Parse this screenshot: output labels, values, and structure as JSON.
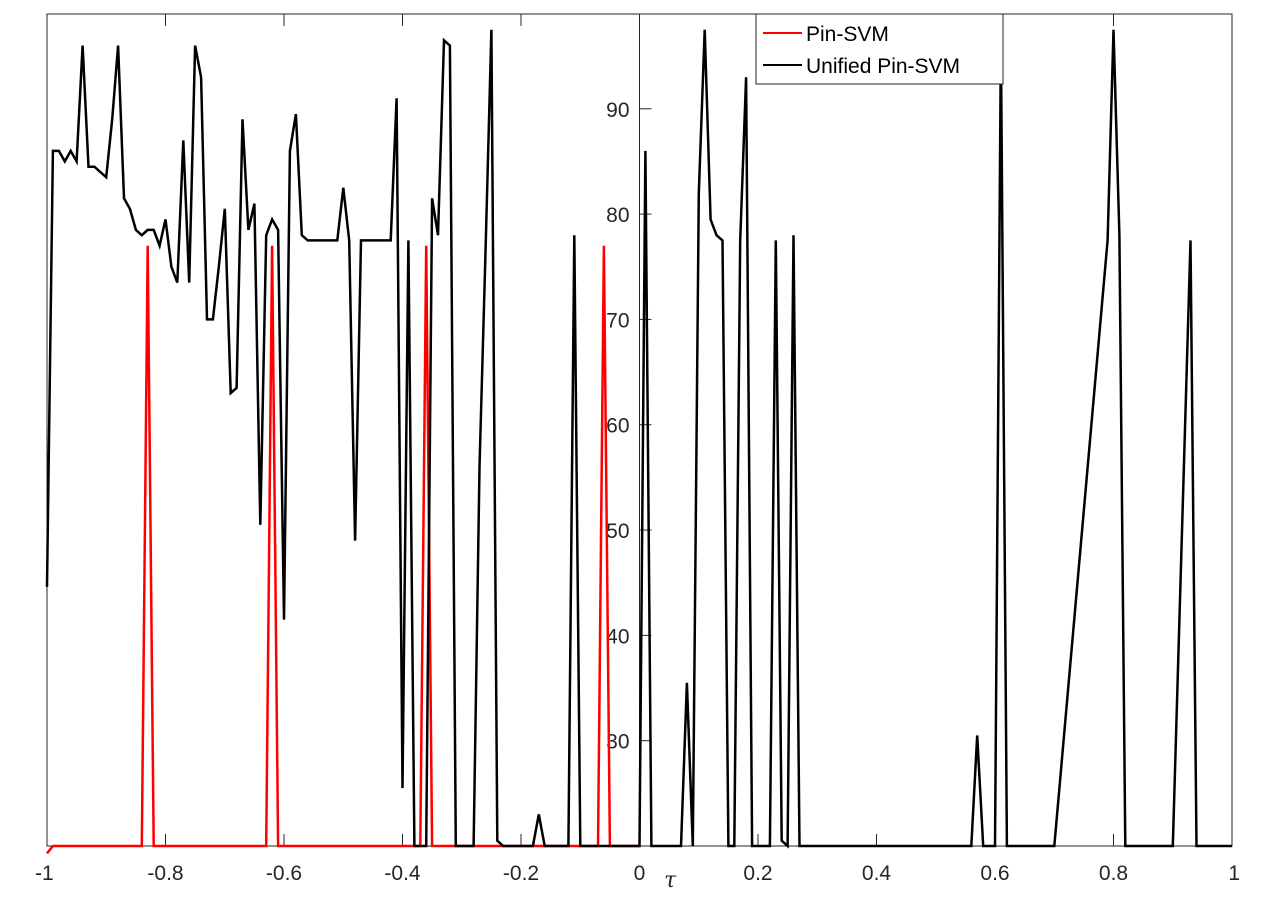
{
  "chart_data": {
    "type": "line",
    "xlabel": "τ",
    "ylabel": "",
    "xlim": [
      -1,
      1
    ],
    "ylim": [
      20,
      99
    ],
    "x_ticks": [
      -1,
      -0.8,
      -0.6,
      -0.4,
      -0.2,
      0,
      0.2,
      0.4,
      0.6,
      0.8,
      1
    ],
    "x_tick_labels": [
      "-1",
      "-0.8",
      "-0.6",
      "-0.4",
      "-0.2",
      "0",
      "0.2",
      "0.4",
      "0.6",
      "0.8",
      "1"
    ],
    "y_ticks": [
      30,
      40,
      50,
      60,
      70,
      80,
      90
    ],
    "y_tick_labels": [
      "30",
      "40",
      "50",
      "60",
      "70",
      "80",
      "90"
    ],
    "y_axis_location": "origin",
    "grid": false,
    "legend": {
      "location": "top-center",
      "entries": [
        "Pin-SVM",
        "Unified Pin-SVM"
      ]
    },
    "series": [
      {
        "name": "Pin-SVM",
        "color": "#ff0000",
        "x": [
          -1,
          -0.99,
          -0.84,
          -0.83,
          -0.82,
          -0.63,
          -0.62,
          -0.61,
          -0.37,
          -0.36,
          -0.35,
          -0.07,
          -0.06,
          -0.05,
          0
        ],
        "y": [
          19.3,
          20,
          20,
          77,
          20,
          20,
          77,
          20,
          20,
          77,
          20,
          20,
          77,
          20,
          20
        ]
      },
      {
        "name": "Unified Pin-SVM",
        "color": "#000000",
        "x": [
          -1,
          -0.99,
          -0.98,
          -0.97,
          -0.96,
          -0.95,
          -0.94,
          -0.93,
          -0.92,
          -0.91,
          -0.9,
          -0.89,
          -0.88,
          -0.87,
          -0.86,
          -0.85,
          -0.84,
          -0.83,
          -0.82,
          -0.81,
          -0.8,
          -0.79,
          -0.78,
          -0.77,
          -0.76,
          -0.75,
          -0.74,
          -0.73,
          -0.72,
          -0.71,
          -0.7,
          -0.69,
          -0.68,
          -0.67,
          -0.66,
          -0.65,
          -0.64,
          -0.63,
          -0.62,
          -0.61,
          -0.6,
          -0.59,
          -0.58,
          -0.57,
          -0.56,
          -0.55,
          -0.54,
          -0.53,
          -0.52,
          -0.51,
          -0.5,
          -0.49,
          -0.48,
          -0.47,
          -0.46,
          -0.45,
          -0.44,
          -0.43,
          -0.42,
          -0.41,
          -0.4,
          -0.39,
          -0.38,
          -0.37,
          -0.36,
          -0.35,
          -0.34,
          -0.33,
          -0.32,
          -0.31,
          -0.3,
          -0.29,
          -0.28,
          -0.27,
          -0.26,
          -0.25,
          -0.24,
          -0.23,
          -0.22,
          -0.21,
          -0.2,
          -0.19,
          -0.18,
          -0.17,
          -0.16,
          -0.15,
          -0.14,
          -0.13,
          -0.12,
          -0.11,
          -0.1,
          -0.09,
          -0.08,
          -0.07,
          -0.06,
          -0.05,
          -0.04,
          -0.03,
          -0.02,
          -0.01,
          0,
          0.01,
          0.02,
          0.03,
          0.04,
          0.05,
          0.06,
          0.07,
          0.08,
          0.09,
          0.1,
          0.11,
          0.12,
          0.13,
          0.14,
          0.15,
          0.16,
          0.17,
          0.18,
          0.19,
          0.2,
          0.21,
          0.22,
          0.23,
          0.24,
          0.25,
          0.26,
          0.27,
          0.28,
          0.3,
          0.4,
          0.5,
          0.56,
          0.57,
          0.58,
          0.59,
          0.6,
          0.61,
          0.62,
          0.63,
          0.64,
          0.7,
          0.79,
          0.8,
          0.81,
          0.82,
          0.83,
          0.9,
          0.93,
          0.94,
          0.95,
          0.96,
          1
        ],
        "y": [
          44.6,
          86,
          86,
          85,
          86,
          85,
          96,
          84.5,
          84.5,
          84,
          83.5,
          89,
          96,
          81.5,
          80.5,
          78.5,
          78,
          78.5,
          78.5,
          77,
          79.5,
          75,
          73.5,
          87,
          73.5,
          96,
          93,
          70,
          70,
          75,
          80.5,
          63,
          63.5,
          89,
          78.5,
          81,
          50.5,
          78,
          79.5,
          78.5,
          41.5,
          86,
          89.5,
          78,
          77.5,
          77.5,
          77.5,
          77.5,
          77.5,
          77.5,
          82.5,
          77.5,
          49,
          77.5,
          77.5,
          77.5,
          77.5,
          77.5,
          77.5,
          91,
          25.5,
          77.5,
          20,
          20,
          20,
          81.5,
          78,
          96.5,
          96,
          20,
          20,
          20,
          20,
          56,
          76,
          97.5,
          20.5,
          20,
          20,
          20,
          20,
          20,
          20,
          23,
          20,
          20,
          20,
          20,
          20,
          78,
          20,
          20,
          20,
          20,
          20,
          20,
          20,
          20,
          20,
          20,
          20,
          86,
          20,
          20,
          20,
          20,
          20,
          20,
          35.5,
          20,
          82,
          97.5,
          79.5,
          78,
          77.5,
          20,
          20,
          77.5,
          93,
          20,
          20,
          20,
          20,
          77.5,
          20.5,
          20,
          78,
          20,
          20,
          20,
          20,
          20,
          20,
          30.5,
          20,
          20,
          20,
          96.5,
          20,
          20,
          20,
          20,
          77.5,
          97.5,
          78,
          20,
          20,
          20,
          77.5,
          20,
          20,
          20,
          20
        ]
      }
    ]
  }
}
